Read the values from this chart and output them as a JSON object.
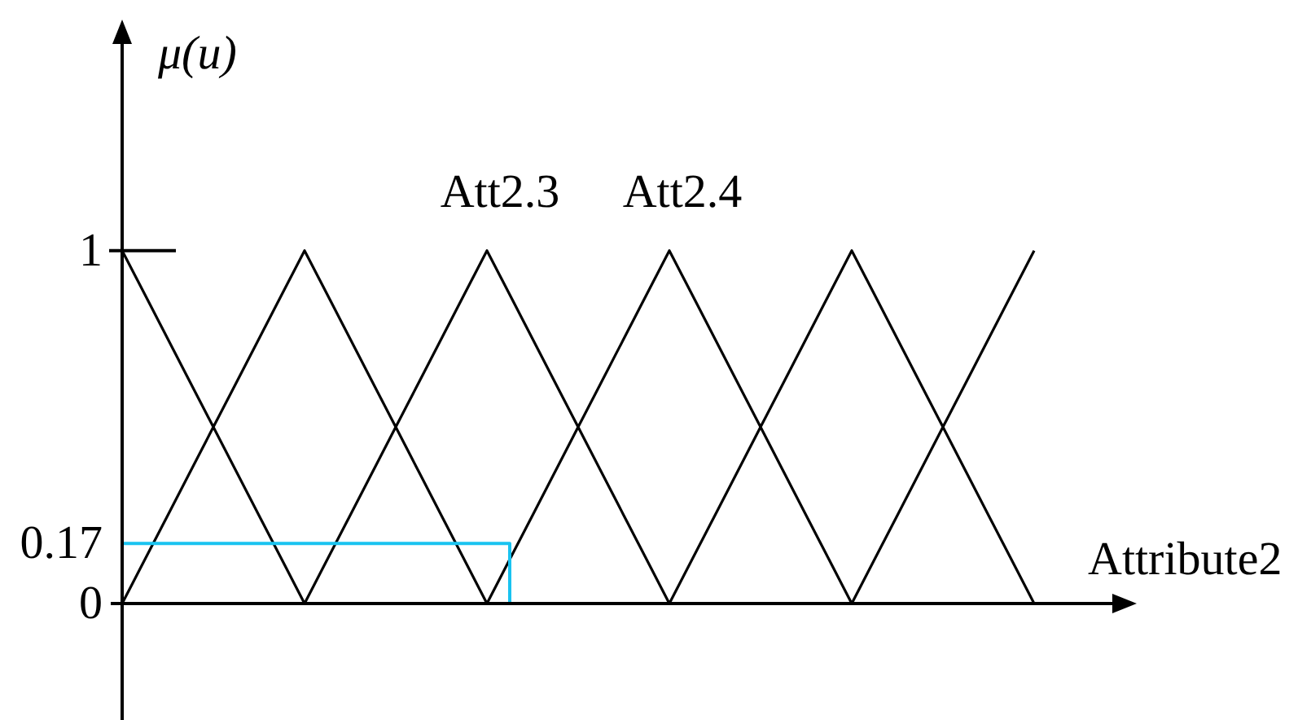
{
  "chart_data": {
    "type": "line",
    "xlabel": "Attribute2",
    "ylabel": "μ(u)",
    "categories": [
      null,
      null,
      null,
      null,
      null,
      null,
      null,
      null,
      null,
      null,
      null,
      null,
      null,
      null,
      null,
      null,
      null,
      null,
      null,
      null,
      null,
      null,
      null,
      null,
      null,
      null,
      null,
      null,
      null,
      null,
      null,
      null,
      null,
      null,
      null,
      null,
      null,
      null,
      null,
      null,
      null,
      null,
      null,
      null
    ],
    "ylim": [
      -0.33,
      1.59
    ],
    "yticks": [
      0,
      0.17,
      1
    ],
    "series": [
      {
        "color": "#000000",
        "values": [
          1,
          0.875,
          0.75,
          0.625,
          0.5,
          0.375,
          0.25,
          0.125,
          0,
          null,
          null,
          null,
          null,
          null,
          null,
          null,
          null,
          null,
          null,
          null,
          null,
          null,
          null,
          null,
          null,
          null,
          null,
          null,
          null,
          null,
          null,
          null,
          null,
          null,
          null,
          null,
          null,
          null,
          null,
          null,
          null,
          null,
          null,
          null
        ]
      },
      {
        "color": "#000000",
        "values": [
          0,
          0.125,
          0.25,
          0.375,
          0.5,
          0.625,
          0.75,
          0.875,
          1,
          0.875,
          0.75,
          0.625,
          0.5,
          0.375,
          0.25,
          0.125,
          0,
          null,
          null,
          null,
          null,
          null,
          null,
          null,
          null,
          null,
          null,
          null,
          null,
          null,
          null,
          null,
          null,
          null,
          null,
          null,
          null,
          null,
          null,
          null,
          null,
          null,
          null,
          null
        ]
      },
      {
        "name": "Att2.3",
        "color": "#000000",
        "values": [
          null,
          null,
          null,
          null,
          null,
          null,
          null,
          null,
          0,
          0.125,
          0.25,
          0.375,
          0.5,
          0.625,
          0.75,
          0.875,
          1,
          0.875,
          0.75,
          0.625,
          0.5,
          0.375,
          0.25,
          0.125,
          0,
          null,
          null,
          null,
          null,
          null,
          null,
          null,
          null,
          null,
          null,
          null,
          null,
          null,
          null,
          null,
          null,
          null,
          null,
          null
        ]
      },
      {
        "name": "Att2.4",
        "color": "#000000",
        "values": [
          null,
          null,
          null,
          null,
          null,
          null,
          null,
          null,
          null,
          null,
          null,
          null,
          null,
          null,
          null,
          null,
          0,
          0.125,
          0.25,
          0.375,
          0.5,
          0.625,
          0.75,
          0.875,
          1,
          0.875,
          0.75,
          0.625,
          0.5,
          0.375,
          0.25,
          0.125,
          0,
          null,
          null,
          null,
          null,
          null,
          null,
          null,
          null,
          null,
          null,
          null
        ]
      },
      {
        "color": "#000000",
        "values": [
          null,
          null,
          null,
          null,
          null,
          null,
          null,
          null,
          null,
          null,
          null,
          null,
          null,
          null,
          null,
          null,
          null,
          null,
          null,
          null,
          null,
          null,
          null,
          null,
          0,
          0.125,
          0.25,
          0.375,
          0.5,
          0.625,
          0.75,
          0.875,
          1,
          0.875,
          0.75,
          0.625,
          0.5,
          0.375,
          0.25,
          0.125,
          0,
          null,
          null,
          null
        ]
      },
      {
        "color": "#000000",
        "values": [
          null,
          null,
          null,
          null,
          null,
          null,
          null,
          null,
          null,
          null,
          null,
          null,
          null,
          null,
          null,
          null,
          null,
          null,
          null,
          null,
          null,
          null,
          null,
          null,
          null,
          null,
          null,
          null,
          null,
          null,
          null,
          null,
          0,
          0.125,
          0.25,
          0.375,
          0.5,
          0.625,
          0.75,
          0.875,
          1,
          null,
          null,
          null
        ]
      },
      {
        "type": "step",
        "color": "#19c3f0",
        "values": [
          0.17,
          0.17,
          0.17,
          0.17,
          0.17,
          0.17,
          0.17,
          0.17,
          0.17,
          0.17,
          0.17,
          0.17,
          0.17,
          0.17,
          0.17,
          0.17,
          0.17,
          0,
          null,
          null,
          null,
          null,
          null,
          null,
          null,
          null,
          null,
          null,
          null,
          null,
          null,
          null,
          null,
          null,
          null,
          null,
          null,
          null,
          null,
          null,
          null,
          null,
          null,
          null
        ]
      }
    ]
  }
}
